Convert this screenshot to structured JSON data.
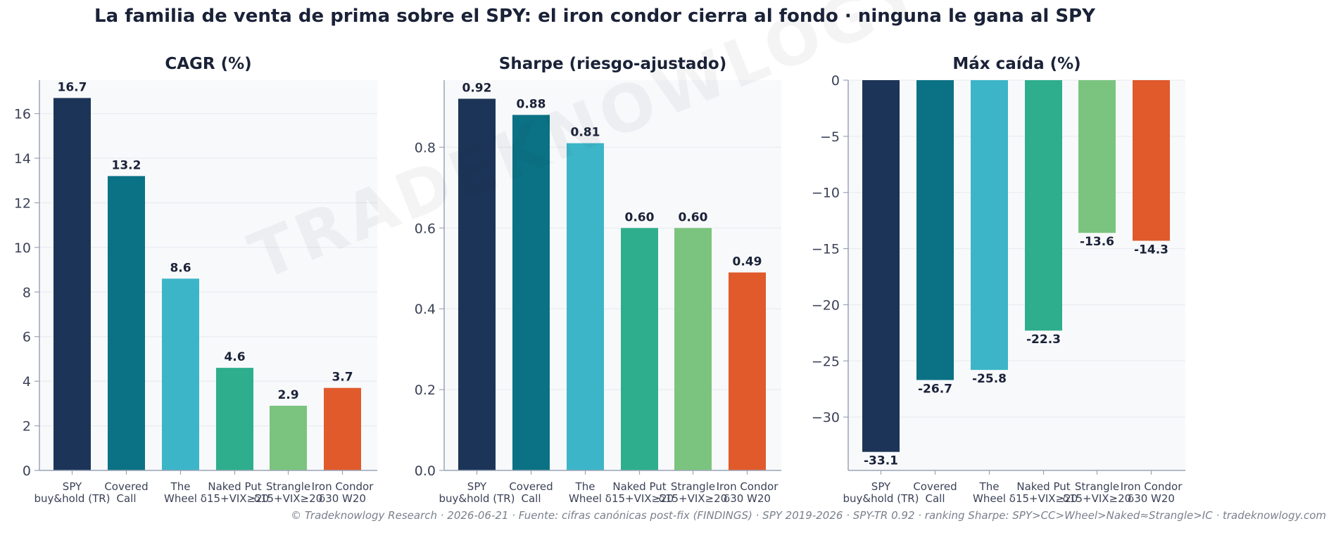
{
  "title": "La familia de venta de prima sobre el SPY: el iron condor cierra al fondo · ninguna le gana al SPY",
  "watermark": "TRADEKNOWLOGY",
  "footer": "© Tradeknowlogy Research   ·   2026-06-21   ·   Fuente: cifras canónicas post-fix (FINDINGS) · SPY 2019-2026 · SPY-TR 0.92 · ranking Sharpe: SPY>CC>Wheel>Naked≈Strangle>IC   ·   tradeknowlogy.com",
  "colors": [
    "#1c3457",
    "#0b7285",
    "#3db5c8",
    "#2eae8c",
    "#7bc47f",
    "#e05a2b"
  ],
  "chart_data": [
    {
      "type": "bar",
      "title": "CAGR (%)",
      "categories": [
        [
          "SPY",
          "buy&hold (TR)"
        ],
        [
          "Covered",
          "Call"
        ],
        [
          "The",
          "Wheel"
        ],
        [
          "Naked Put",
          "δ15+VIX≥20"
        ],
        [
          "Strangle",
          "δ15+VIX≥20"
        ],
        [
          "Iron Condor",
          "δ30 W20"
        ]
      ],
      "values": [
        16.7,
        13.2,
        8.6,
        4.6,
        2.9,
        3.7
      ],
      "labels": [
        "16.7",
        "13.2",
        "8.6",
        "4.6",
        "2.9",
        "3.7"
      ],
      "ylim": [
        0,
        17.5
      ],
      "yticks": [
        0,
        2,
        4,
        6,
        8,
        10,
        12,
        14,
        16
      ],
      "ytick_labels": [
        "0",
        "2",
        "4",
        "6",
        "8",
        "10",
        "12",
        "14",
        "16"
      ],
      "grid": true
    },
    {
      "type": "bar",
      "title": "Sharpe (riesgo-ajustado)",
      "categories": [
        [
          "SPY",
          "buy&hold (TR)"
        ],
        [
          "Covered",
          "Call"
        ],
        [
          "The",
          "Wheel"
        ],
        [
          "Naked Put",
          "δ15+VIX≥20"
        ],
        [
          "Strangle",
          "δ15+VIX≥20"
        ],
        [
          "Iron Condor",
          "δ30 W20"
        ]
      ],
      "values": [
        0.92,
        0.88,
        0.81,
        0.6,
        0.6,
        0.49
      ],
      "labels": [
        "0.92",
        "0.88",
        "0.81",
        "0.60",
        "0.60",
        "0.49"
      ],
      "ylim": [
        0,
        0.966
      ],
      "yticks": [
        0,
        0.2,
        0.4,
        0.6,
        0.8
      ],
      "ytick_labels": [
        "0.0",
        "0.2",
        "0.4",
        "0.6",
        "0.8"
      ],
      "grid": true
    },
    {
      "type": "bar",
      "title": "Máx caída (%)",
      "categories": [
        [
          "SPY",
          "buy&hold (TR)"
        ],
        [
          "Covered",
          "Call"
        ],
        [
          "The",
          "Wheel"
        ],
        [
          "Naked Put",
          "δ15+VIX≥20"
        ],
        [
          "Strangle",
          "δ15+VIX≥20"
        ],
        [
          "Iron Condor",
          "δ30 W20"
        ]
      ],
      "values": [
        -33.1,
        -26.7,
        -25.8,
        -22.3,
        -13.6,
        -14.3
      ],
      "labels": [
        "-33.1",
        "-26.7",
        "-25.8",
        "-22.3",
        "-13.6",
        "-14.3"
      ],
      "ylim": [
        -34.75,
        0
      ],
      "yticks": [
        0,
        -5,
        -10,
        -15,
        -20,
        -25,
        -30
      ],
      "ytick_labels": [
        "0",
        "−5",
        "−10",
        "−15",
        "−20",
        "−25",
        "−30"
      ],
      "grid": true
    }
  ]
}
